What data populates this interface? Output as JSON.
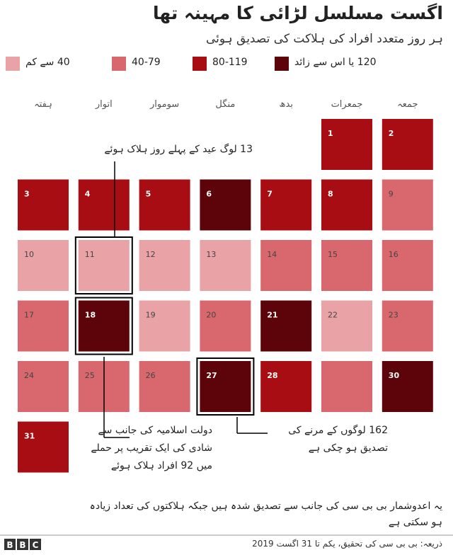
{
  "header": {
    "title": "اگست مسلسل لڑائی کا مہینہ تھا",
    "subtitle": "ہر روز متعدد افراد کی ہلاکت کی تصدیق ہوئی"
  },
  "chart_data": {
    "type": "calendar",
    "legend": [
      {
        "label": "40 سے کم",
        "color": "#e9a3a7"
      },
      {
        "label": "40-79",
        "color": "#d9686e"
      },
      {
        "label": "80-119",
        "color": "#a80d14"
      },
      {
        "label": "120 یا اس سے زائد",
        "color": "#5c0409"
      }
    ],
    "weekdays": [
      "ہفتہ",
      "اتوار",
      "سوموار",
      "منگل",
      "بدھ",
      "جمعرات",
      "جمعہ"
    ],
    "days": [
      {
        "label": "1",
        "level": 2
      },
      {
        "label": "2",
        "level": 2
      },
      {
        "label": "3",
        "level": 2
      },
      {
        "label": "4",
        "level": 2
      },
      {
        "label": "5",
        "level": 2
      },
      {
        "label": "6",
        "level": 3
      },
      {
        "label": "7",
        "level": 2
      },
      {
        "label": "8",
        "level": 2
      },
      {
        "label": "9",
        "level": 1
      },
      {
        "label": "10",
        "level": 0
      },
      {
        "label": "11",
        "level": 0,
        "highlighted": true
      },
      {
        "label": "12",
        "level": 0
      },
      {
        "label": "13",
        "level": 0
      },
      {
        "label": "14",
        "level": 1
      },
      {
        "label": "15",
        "level": 1
      },
      {
        "label": "16",
        "level": 1
      },
      {
        "label": "17",
        "level": 1
      },
      {
        "label": "18",
        "level": 3,
        "highlighted": true
      },
      {
        "label": "19",
        "level": 0
      },
      {
        "label": "20",
        "level": 1
      },
      {
        "label": "21",
        "level": 3
      },
      {
        "label": "22",
        "level": 0
      },
      {
        "label": "23",
        "level": 1
      },
      {
        "label": "24",
        "level": 1
      },
      {
        "label": "25",
        "level": 1
      },
      {
        "label": "26",
        "level": 1
      },
      {
        "label": "27",
        "level": 3,
        "highlighted": true
      },
      {
        "label": "28",
        "level": 2
      },
      {
        "label": null,
        "level": 1
      },
      {
        "label": "30",
        "level": 3
      },
      {
        "label": "31",
        "level": 2
      }
    ],
    "annotations": [
      {
        "lines": [
          "13 لوگ عید کے پہلے روز ہلاک ہوئے"
        ]
      },
      {
        "lines": [
          "دولت اسلامیہ کی جانب سے",
          "شادی کی ایک تقریب پر حملے",
          "میں 92 افراد ہلاک ہوئے"
        ]
      },
      {
        "lines": [
          "162 لوگوں کے مرنے کی",
          "تصدیق ہو چکی ہے"
        ]
      }
    ]
  },
  "note": [
    "یہ اعدوشمار بی بی سی کی جانب سے تصدیق شدہ ہیں جبکہ ہلاکتوں کی تعداد زیادہ",
    "ہو سکتی ہے"
  ],
  "footer": {
    "logo": [
      "B",
      "B",
      "C"
    ],
    "source": "ذریعہ: بی بی سی کی تحقیق، یکم تا 31 اگست 2019"
  }
}
